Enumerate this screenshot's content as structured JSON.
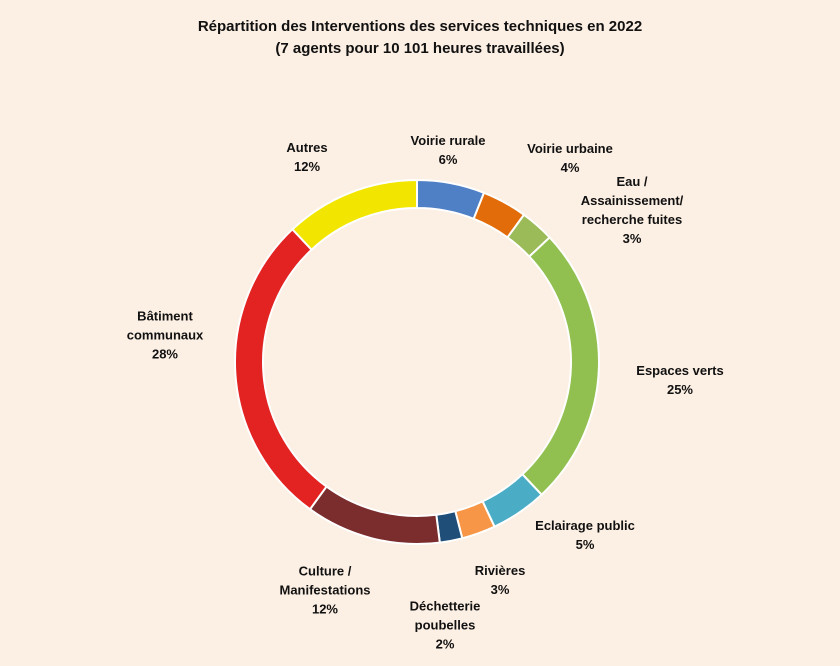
{
  "chart_data": {
    "type": "donut",
    "title": "Répartition des Interventions des services techniques en 2022",
    "subtitle": "(7 agents pour 10 101 heures travaillées)",
    "categories": [
      "Voirie rurale",
      "Voirie urbaine",
      "Eau /\nAssainissement/\nrecherche fuites",
      "Espaces verts",
      "Eclairage public",
      "Rivières",
      "Déchetterie\npoubelles",
      "Culture /\nManifestations",
      "Bâtiment\ncommunaux",
      "Autres"
    ],
    "values": [
      6,
      4,
      3,
      25,
      5,
      3,
      2,
      12,
      28,
      12
    ],
    "value_labels": [
      "6%",
      "4%",
      "3%",
      "25%",
      "5%",
      "3%",
      "2%",
      "12%",
      "28%",
      "12%"
    ],
    "colors": [
      "#4f7fc4",
      "#e36c0a",
      "#9bbb59",
      "#92c050",
      "#4bacc6",
      "#f79646",
      "#1f4e79",
      "#7b2c2c",
      "#e32222",
      "#f2e600"
    ]
  }
}
